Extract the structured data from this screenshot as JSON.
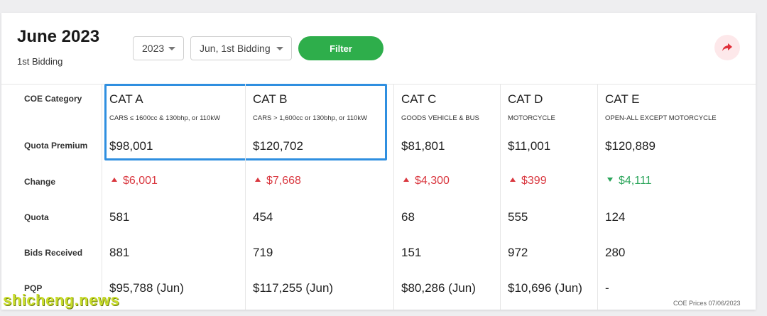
{
  "header": {
    "title": "June 2023",
    "subtitle": "1st Bidding",
    "year_select": "2023",
    "bidding_select": "Jun, 1st Bidding",
    "filter_label": "Filter"
  },
  "row_labels": {
    "category": "COE Category",
    "premium": "Quota Premium",
    "change": "Change",
    "quota": "Quota",
    "bids": "Bids Received",
    "pqp": "PQP"
  },
  "categories": [
    {
      "name": "CAT A",
      "desc": "CARS ≤ 1600cc & 130bhp, or 110kW",
      "premium": "$98,001",
      "change": "$6,001",
      "direction": "up",
      "quota": "581",
      "bids": "881",
      "pqp": "$95,788 (Jun)"
    },
    {
      "name": "CAT B",
      "desc": "CARS > 1,600cc or 130bhp, or 110kW",
      "premium": "$120,702",
      "change": "$7,668",
      "direction": "up",
      "quota": "454",
      "bids": "719",
      "pqp": "$117,255 (Jun)"
    },
    {
      "name": "CAT C",
      "desc": "GOODS VEHICLE & BUS",
      "premium": "$81,801",
      "change": "$4,300",
      "direction": "up",
      "quota": "68",
      "bids": "151",
      "pqp": "$80,286 (Jun)"
    },
    {
      "name": "CAT D",
      "desc": "MOTORCYCLE",
      "premium": "$11,001",
      "change": "$399",
      "direction": "up",
      "quota": "555",
      "bids": "972",
      "pqp": "$10,696 (Jun)"
    },
    {
      "name": "CAT E",
      "desc": "OPEN-ALL EXCEPT MOTORCYCLE",
      "premium": "$120,889",
      "change": "$4,111",
      "direction": "down",
      "quota": "124",
      "bids": "280",
      "pqp": "-"
    }
  ],
  "footnote": "COE Prices 07/06/2023",
  "watermark": "shicheng.news",
  "colors": {
    "accent_green": "#2eae4b",
    "up": "#d9363e",
    "down": "#2aa55a",
    "highlight": "#2f8fe0"
  },
  "icons": {
    "share": "share-arrow-icon"
  }
}
